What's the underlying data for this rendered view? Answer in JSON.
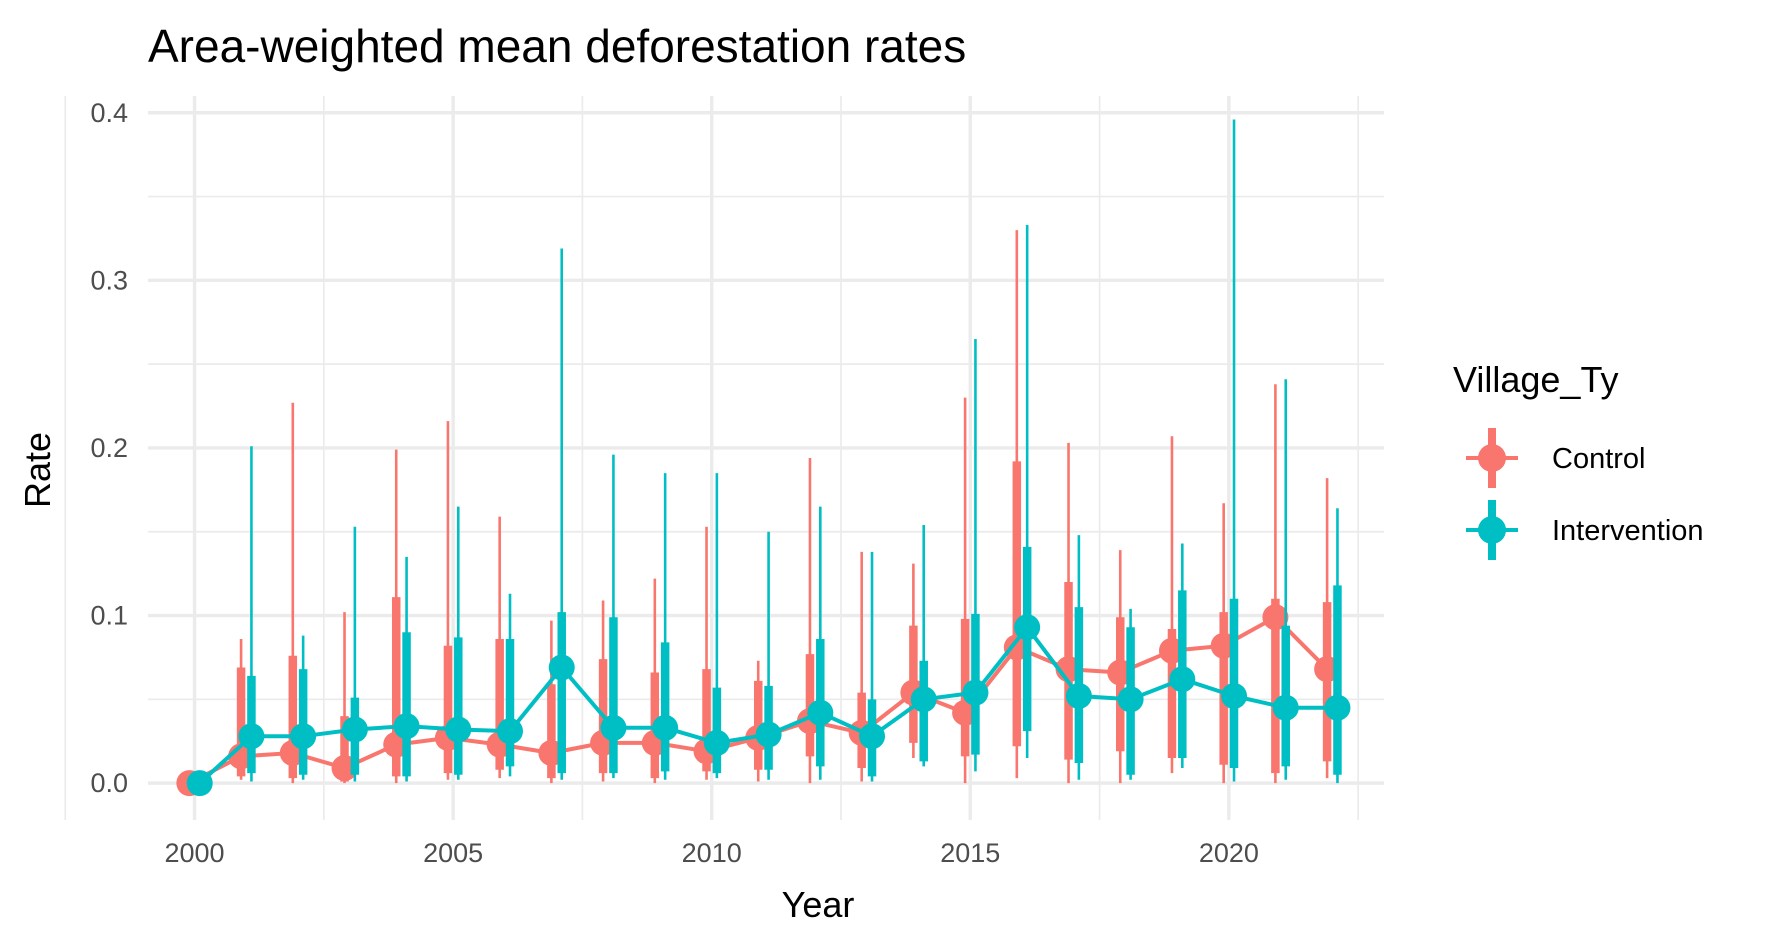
{
  "chart_data": {
    "type": "line",
    "title": "Area-weighted mean deforestation rates",
    "xlabel": "Year",
    "ylabel": "Rate",
    "xlim": [
      1999.1,
      2023.0
    ],
    "ylim": [
      -0.022,
      0.41
    ],
    "x_ticks": [
      2000,
      2005,
      2010,
      2015,
      2020
    ],
    "x_tick_labels": [
      "2000",
      "2005",
      "2010",
      "2015",
      "2020"
    ],
    "y_ticks": [
      0.0,
      0.1,
      0.2,
      0.3,
      0.4
    ],
    "y_tick_labels": [
      "0.0",
      "0.1",
      "0.2",
      "0.3",
      "0.4"
    ],
    "grid": true,
    "legend_position": "right",
    "legend_title": "Village_Ty",
    "series": [
      {
        "name": "Control",
        "color": "#F8766D",
        "points": [
          {
            "x": 2000,
            "y": 0.0,
            "inner": [
              0.0,
              0.0
            ],
            "outer": [
              0.0,
              0.0
            ]
          },
          {
            "x": 2001,
            "y": 0.016,
            "inner": [
              0.004,
              0.069
            ],
            "outer": [
              0.002,
              0.086
            ]
          },
          {
            "x": 2002,
            "y": 0.018,
            "inner": [
              0.003,
              0.076
            ],
            "outer": [
              0.0,
              0.227
            ]
          },
          {
            "x": 2003,
            "y": 0.009,
            "inner": [
              0.001,
              0.04
            ],
            "outer": [
              0.0,
              0.102
            ]
          },
          {
            "x": 2004,
            "y": 0.023,
            "inner": [
              0.004,
              0.111
            ],
            "outer": [
              0.0,
              0.199
            ]
          },
          {
            "x": 2005,
            "y": 0.027,
            "inner": [
              0.006,
              0.082
            ],
            "outer": [
              0.002,
              0.216
            ]
          },
          {
            "x": 2006,
            "y": 0.023,
            "inner": [
              0.008,
              0.086
            ],
            "outer": [
              0.003,
              0.159
            ]
          },
          {
            "x": 2007,
            "y": 0.018,
            "inner": [
              0.003,
              0.059
            ],
            "outer": [
              0.0,
              0.097
            ]
          },
          {
            "x": 2008,
            "y": 0.024,
            "inner": [
              0.006,
              0.074
            ],
            "outer": [
              0.001,
              0.109
            ]
          },
          {
            "x": 2009,
            "y": 0.024,
            "inner": [
              0.003,
              0.066
            ],
            "outer": [
              0.0,
              0.122
            ]
          },
          {
            "x": 2010,
            "y": 0.019,
            "inner": [
              0.007,
              0.068
            ],
            "outer": [
              0.002,
              0.153
            ]
          },
          {
            "x": 2011,
            "y": 0.027,
            "inner": [
              0.008,
              0.061
            ],
            "outer": [
              0.001,
              0.073
            ]
          },
          {
            "x": 2012,
            "y": 0.037,
            "inner": [
              0.016,
              0.077
            ],
            "outer": [
              0.0,
              0.194
            ]
          },
          {
            "x": 2013,
            "y": 0.03,
            "inner": [
              0.009,
              0.054
            ],
            "outer": [
              0.001,
              0.138
            ]
          },
          {
            "x": 2014,
            "y": 0.054,
            "inner": [
              0.024,
              0.094
            ],
            "outer": [
              0.015,
              0.131
            ]
          },
          {
            "x": 2015,
            "y": 0.042,
            "inner": [
              0.016,
              0.098
            ],
            "outer": [
              0.0,
              0.23
            ]
          },
          {
            "x": 2016,
            "y": 0.081,
            "inner": [
              0.022,
              0.192
            ],
            "outer": [
              0.003,
              0.33
            ]
          },
          {
            "x": 2017,
            "y": 0.068,
            "inner": [
              0.014,
              0.12
            ],
            "outer": [
              0.0,
              0.203
            ]
          },
          {
            "x": 2018,
            "y": 0.066,
            "inner": [
              0.019,
              0.099
            ],
            "outer": [
              0.0,
              0.139
            ]
          },
          {
            "x": 2019,
            "y": 0.079,
            "inner": [
              0.015,
              0.092
            ],
            "outer": [
              0.006,
              0.207
            ]
          },
          {
            "x": 2020,
            "y": 0.082,
            "inner": [
              0.011,
              0.102
            ],
            "outer": [
              0.0,
              0.167
            ]
          },
          {
            "x": 2021,
            "y": 0.099,
            "inner": [
              0.006,
              0.11
            ],
            "outer": [
              0.0,
              0.238
            ]
          },
          {
            "x": 2022,
            "y": 0.068,
            "inner": [
              0.013,
              0.108
            ],
            "outer": [
              0.003,
              0.182
            ]
          }
        ]
      },
      {
        "name": "Intervention",
        "color": "#00BFC4",
        "points": [
          {
            "x": 2000,
            "y": 0.0,
            "inner": [
              0.0,
              0.0
            ],
            "outer": [
              0.0,
              0.0
            ]
          },
          {
            "x": 2001,
            "y": 0.028,
            "inner": [
              0.006,
              0.064
            ],
            "outer": [
              0.001,
              0.201
            ]
          },
          {
            "x": 2002,
            "y": 0.028,
            "inner": [
              0.005,
              0.068
            ],
            "outer": [
              0.002,
              0.088
            ]
          },
          {
            "x": 2003,
            "y": 0.032,
            "inner": [
              0.005,
              0.051
            ],
            "outer": [
              0.001,
              0.153
            ]
          },
          {
            "x": 2004,
            "y": 0.034,
            "inner": [
              0.004,
              0.09
            ],
            "outer": [
              0.001,
              0.135
            ]
          },
          {
            "x": 2005,
            "y": 0.032,
            "inner": [
              0.005,
              0.087
            ],
            "outer": [
              0.002,
              0.165
            ]
          },
          {
            "x": 2006,
            "y": 0.031,
            "inner": [
              0.01,
              0.086
            ],
            "outer": [
              0.004,
              0.113
            ]
          },
          {
            "x": 2007,
            "y": 0.069,
            "inner": [
              0.006,
              0.102
            ],
            "outer": [
              0.002,
              0.319
            ]
          },
          {
            "x": 2008,
            "y": 0.033,
            "inner": [
              0.006,
              0.099
            ],
            "outer": [
              0.003,
              0.196
            ]
          },
          {
            "x": 2009,
            "y": 0.033,
            "inner": [
              0.007,
              0.084
            ],
            "outer": [
              0.002,
              0.185
            ]
          },
          {
            "x": 2010,
            "y": 0.024,
            "inner": [
              0.006,
              0.057
            ],
            "outer": [
              0.003,
              0.185
            ]
          },
          {
            "x": 2011,
            "y": 0.029,
            "inner": [
              0.008,
              0.058
            ],
            "outer": [
              0.002,
              0.15
            ]
          },
          {
            "x": 2012,
            "y": 0.042,
            "inner": [
              0.01,
              0.086
            ],
            "outer": [
              0.002,
              0.165
            ]
          },
          {
            "x": 2013,
            "y": 0.028,
            "inner": [
              0.004,
              0.05
            ],
            "outer": [
              0.001,
              0.138
            ]
          },
          {
            "x": 2014,
            "y": 0.05,
            "inner": [
              0.013,
              0.073
            ],
            "outer": [
              0.01,
              0.154
            ]
          },
          {
            "x": 2015,
            "y": 0.054,
            "inner": [
              0.017,
              0.101
            ],
            "outer": [
              0.007,
              0.265
            ]
          },
          {
            "x": 2016,
            "y": 0.093,
            "inner": [
              0.031,
              0.141
            ],
            "outer": [
              0.015,
              0.333
            ]
          },
          {
            "x": 2017,
            "y": 0.052,
            "inner": [
              0.012,
              0.105
            ],
            "outer": [
              0.002,
              0.148
            ]
          },
          {
            "x": 2018,
            "y": 0.05,
            "inner": [
              0.005,
              0.093
            ],
            "outer": [
              0.002,
              0.104
            ]
          },
          {
            "x": 2019,
            "y": 0.062,
            "inner": [
              0.015,
              0.115
            ],
            "outer": [
              0.009,
              0.143
            ]
          },
          {
            "x": 2020,
            "y": 0.052,
            "inner": [
              0.009,
              0.11
            ],
            "outer": [
              0.001,
              0.396
            ]
          },
          {
            "x": 2021,
            "y": 0.045,
            "inner": [
              0.01,
              0.094
            ],
            "outer": [
              0.002,
              0.241
            ]
          },
          {
            "x": 2022,
            "y": 0.045,
            "inner": [
              0.005,
              0.118
            ],
            "outer": [
              0.0,
              0.164
            ]
          }
        ]
      }
    ]
  }
}
